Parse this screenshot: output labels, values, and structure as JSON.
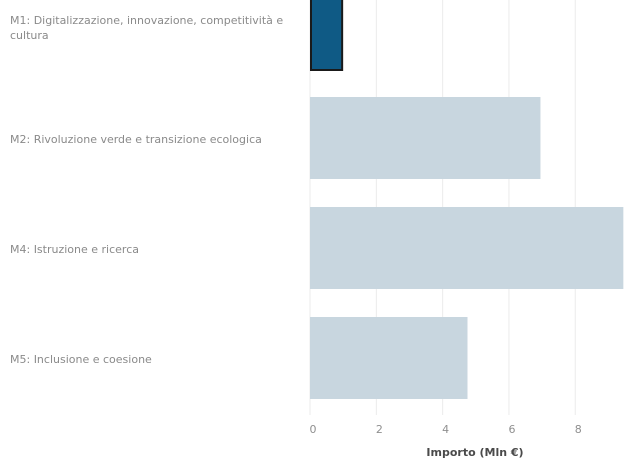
{
  "chart_data": {
    "type": "bar",
    "orientation": "horizontal",
    "categories": [
      "M1: Digitalizzazione, innovazione, competitività e cultura",
      "M2: Rivoluzione verde e transizione ecologica",
      "M4: Istruzione e ricerca",
      "M5: Inclusione e coesione"
    ],
    "values": [
      1.0,
      6.95,
      9.45,
      4.75
    ],
    "highlighted_index": 0,
    "xlabel": "Importo (Mln €)",
    "ylabel": "",
    "xlim": [
      0,
      9.5
    ],
    "xticks": [
      "0",
      "2",
      "4",
      "6",
      "8"
    ],
    "grid": true,
    "colors": {
      "bar": "#c8d6df",
      "highlight": "#0f5a85",
      "highlight_border": "#1a1a1a",
      "grid": "#ebebeb",
      "tick_text": "#8f8f8f",
      "label_text": "#8a8a8a"
    }
  }
}
